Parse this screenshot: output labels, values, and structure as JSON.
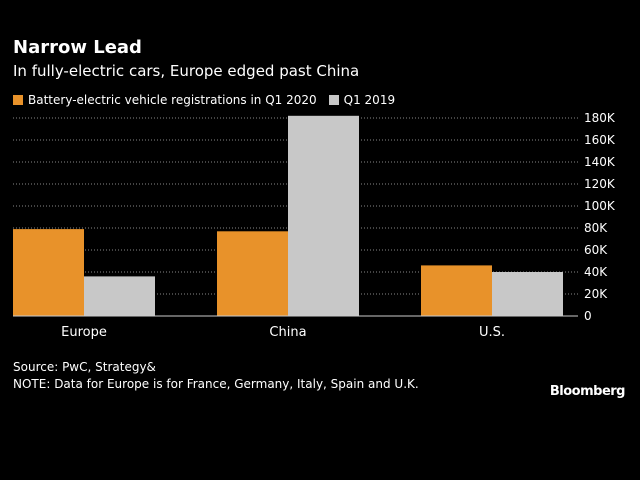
{
  "title": "Narrow Lead",
  "subtitle": "In fully-electric cars, Europe edged past China",
  "colors": {
    "q1_2020": "#e8922a",
    "q1_2019": "#c8c8c8",
    "background": "#000000",
    "gridline": "#888888"
  },
  "chart_data": {
    "type": "bar",
    "categories": [
      "Europe",
      "China",
      "U.S."
    ],
    "series": [
      {
        "name": "Battery-electric vehicle registrations in Q1 2020",
        "values": [
          79000,
          77000,
          46000
        ]
      },
      {
        "name": "Q1 2019",
        "values": [
          36000,
          182000,
          40000
        ]
      }
    ],
    "y_ticks": [
      0,
      20000,
      40000,
      60000,
      80000,
      100000,
      120000,
      140000,
      160000,
      180000
    ],
    "y_tick_labels": [
      "0",
      "20K",
      "40K",
      "60K",
      "80K",
      "100K",
      "120K",
      "140K",
      "160K",
      "180K"
    ],
    "ylim": [
      0,
      180000
    ],
    "y_axis_side": "right",
    "grid": true,
    "legend_position": "top-left"
  },
  "footer": {
    "source": "Source: PwC, Strategy&",
    "note": "NOTE: Data for Europe is for France, Germany, Italy, Spain and U.K."
  },
  "brand": "Bloomberg"
}
